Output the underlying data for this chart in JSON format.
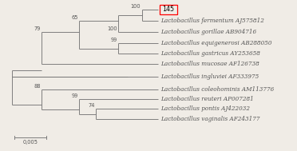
{
  "taxa_labels": [
    {
      "name": "145",
      "key": "145"
    },
    {
      "name": "Lactobacillus fermentum AJ575812",
      "key": "fermentum"
    },
    {
      "name": "Lactobacillus gorillae AB904716",
      "key": "gorillae"
    },
    {
      "name": "Lactobacillus equigenerosi AB288050",
      "key": "equigenerosi"
    },
    {
      "name": "Lactobacillus gastricus AY253658",
      "key": "gastricus"
    },
    {
      "name": "Lactobacillus mucosae AF126738",
      "key": "mucosae"
    },
    {
      "name": "Lactobacillus ingluviei AF333975",
      "key": "ingluviei"
    },
    {
      "name": "Lactobacillus coleohominis AM113776",
      "key": "coleohominis"
    },
    {
      "name": "Lactobacillus reuteri AP007281",
      "key": "reuteri"
    },
    {
      "name": "Lactobacillus pontis AJ422032",
      "key": "pontis"
    },
    {
      "name": "Lactobacillus vaginalis AF243177",
      "key": "vaginalis"
    }
  ],
  "bg_color": "#f0ece6",
  "line_color": "#777777",
  "label_color": "#555555",
  "font_size_labels": 5.2,
  "font_size_bootstrap": 4.8,
  "font_size_scalebar": 4.8,
  "scale_bar_label": "0,005"
}
